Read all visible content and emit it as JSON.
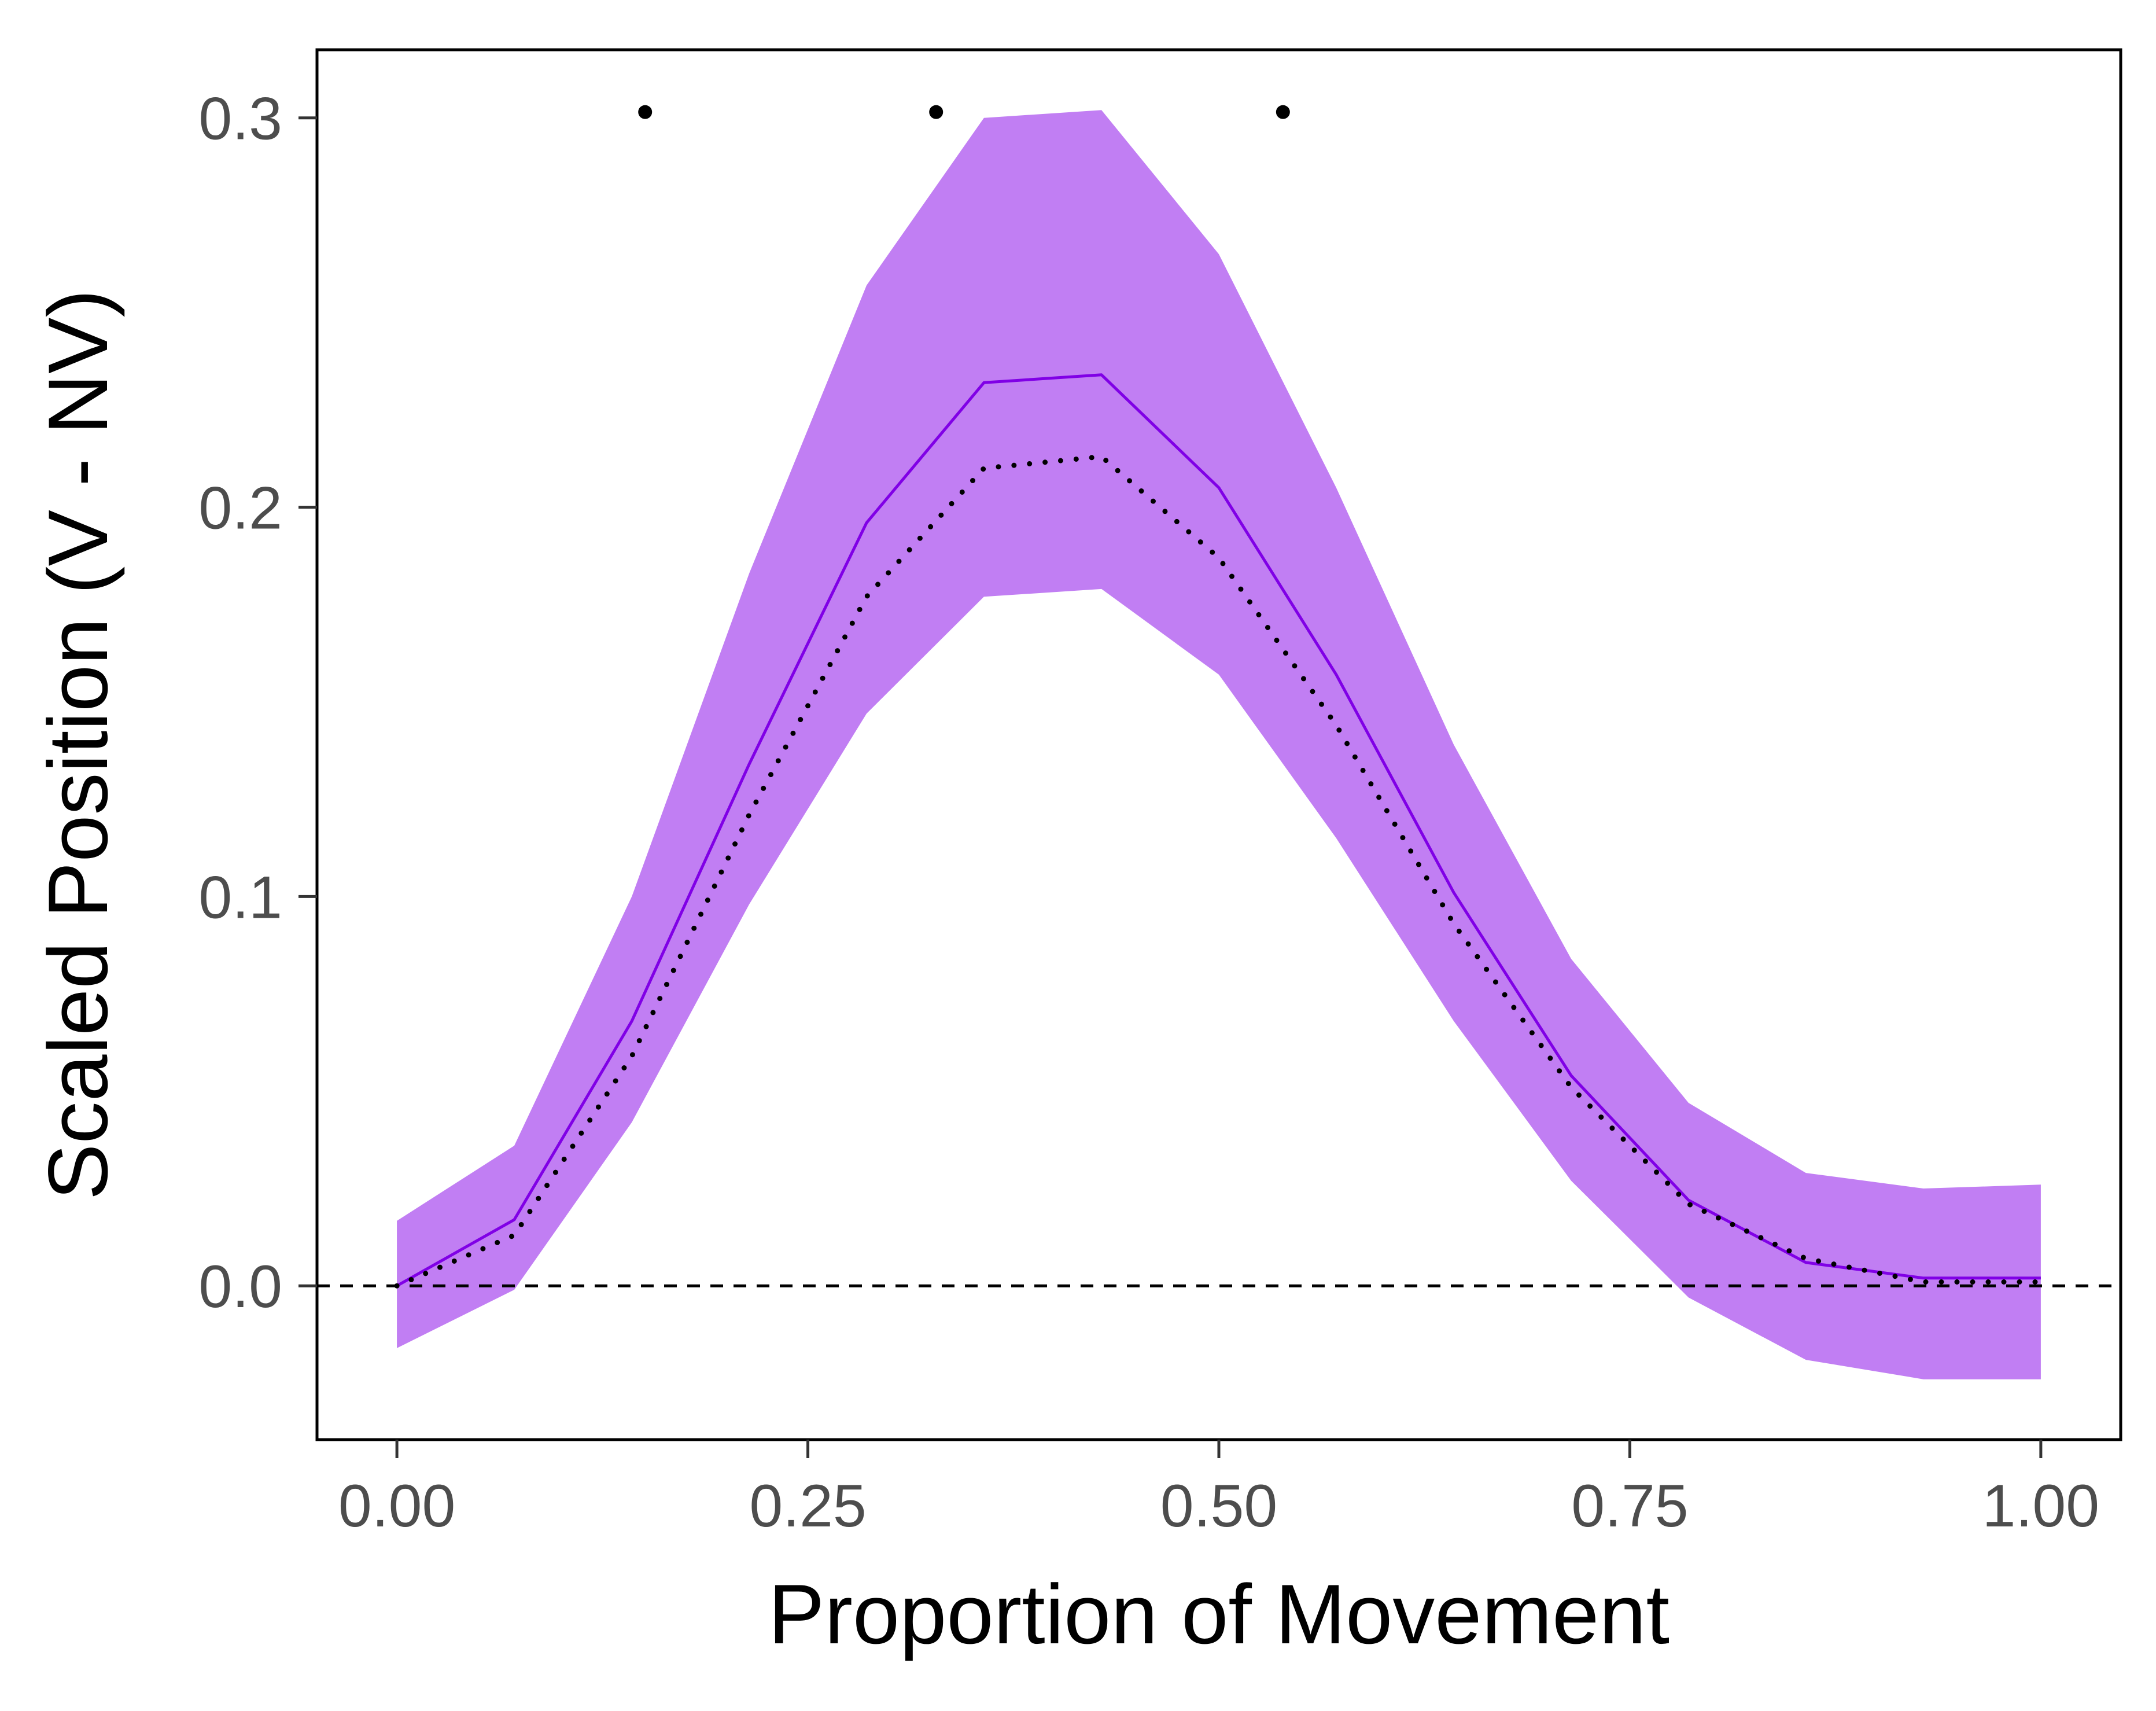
{
  "chart_data": {
    "type": "line",
    "xlabel": "Proportion of Movement",
    "ylabel": "Scaled Position (V - NV)",
    "xlim": [
      -0.0486,
      1.0486
    ],
    "ylim": [
      -0.0395,
      0.3175
    ],
    "x_ticks": [
      {
        "value": 0.0,
        "label": "0.00"
      },
      {
        "value": 0.25,
        "label": "0.25"
      },
      {
        "value": 0.5,
        "label": "0.50"
      },
      {
        "value": 0.75,
        "label": "0.75"
      },
      {
        "value": 1.0,
        "label": "1.00"
      }
    ],
    "y_ticks": [
      {
        "value": 0.0,
        "label": "0.0"
      },
      {
        "value": 0.1,
        "label": "0.1"
      },
      {
        "value": 0.2,
        "label": "0.2"
      },
      {
        "value": 0.3,
        "label": "0.3"
      }
    ],
    "x": [
      0.0,
      0.0714,
      0.1429,
      0.2143,
      0.2857,
      0.3571,
      0.4286,
      0.5,
      0.5714,
      0.6429,
      0.7143,
      0.7857,
      0.8571,
      0.9286,
      1.0
    ],
    "band_upper": [
      0.0167,
      0.036,
      0.1,
      0.183,
      0.257,
      0.3,
      0.302,
      0.265,
      0.205,
      0.139,
      0.084,
      0.047,
      0.029,
      0.025,
      0.026
    ],
    "band_lower": [
      -0.016,
      -0.001,
      0.042,
      0.098,
      0.147,
      0.177,
      0.179,
      0.157,
      0.115,
      0.068,
      0.027,
      -0.003,
      -0.019,
      -0.024,
      -0.024
    ],
    "series": [
      {
        "style": "solid",
        "color": "#8000e6",
        "values": [
          0.0,
          0.017,
          0.068,
          0.134,
          0.196,
          0.232,
          0.234,
          0.205,
          0.157,
          0.101,
          0.054,
          0.022,
          0.006,
          0.002,
          0.002
        ]
      },
      {
        "style": "dotted",
        "color": "#000000",
        "values": [
          0.0,
          0.013,
          0.059,
          0.121,
          0.177,
          0.21,
          0.213,
          0.187,
          0.144,
          0.093,
          0.051,
          0.021,
          0.007,
          0.001,
          0.001
        ]
      }
    ],
    "significance_points": [
      {
        "x": 0.151,
        "y": 0.3015
      },
      {
        "x": 0.328,
        "y": 0.3015
      },
      {
        "x": 0.539,
        "y": 0.3015
      }
    ],
    "reference_line": {
      "y": 0.0,
      "style": "dashed"
    },
    "colors": {
      "band": "#c17ef3",
      "line": "#8000e6",
      "dotted": "#000000",
      "reference": "#000000"
    },
    "grid": false
  }
}
